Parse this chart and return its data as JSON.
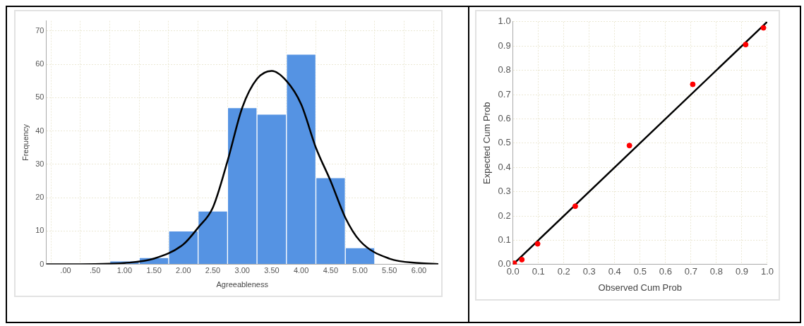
{
  "chart_data": [
    {
      "type": "histogram",
      "xlabel": "Agreeableness",
      "ylabel": "Frequency",
      "bins": [
        0.75,
        1.25,
        1.75,
        2.25,
        2.75,
        3.25,
        3.75,
        4.25,
        4.75,
        5.25
      ],
      "values": [
        1,
        2,
        10,
        16,
        47,
        45,
        63,
        26,
        5
      ],
      "color": "#5593e3",
      "series": [
        {
          "type": "line",
          "color": "#000000",
          "marker": "none",
          "x": [
            -0.33,
            0.0,
            0.5,
            1.0,
            1.5,
            2.0,
            2.25,
            2.5,
            2.75,
            3.0,
            3.25,
            3.5,
            3.75,
            4.0,
            4.25,
            4.5,
            4.75,
            5.0,
            5.5,
            6.0,
            6.33
          ],
          "values": [
            0,
            0,
            0.1,
            0.4,
            1.7,
            6,
            11,
            17,
            31,
            47,
            55.6,
            58,
            55,
            48,
            35,
            25,
            14,
            7,
            1.7,
            0.4,
            0.1
          ]
        }
      ],
      "xlim": [
        -0.33,
        6.33
      ],
      "xticks": [
        {
          "value": 0,
          "label": ".00"
        },
        {
          "value": 0.5,
          "label": ".50"
        },
        {
          "value": 1,
          "label": "1.00"
        },
        {
          "value": 1.5,
          "label": "1.50"
        },
        {
          "value": 2,
          "label": "2.00"
        },
        {
          "value": 2.5,
          "label": "2.50"
        },
        {
          "value": 3,
          "label": "3.00"
        },
        {
          "value": 3.5,
          "label": "3.50"
        },
        {
          "value": 4,
          "label": "4.00"
        },
        {
          "value": 4.5,
          "label": "4.50"
        },
        {
          "value": 5,
          "label": "5.00"
        },
        {
          "value": 5.5,
          "label": "5.50"
        },
        {
          "value": 6,
          "label": "6.00"
        }
      ],
      "ylim": [
        0,
        73
      ],
      "yticks": [
        0,
        10,
        20,
        30,
        40,
        50,
        60,
        70
      ],
      "grid": true
    },
    {
      "type": "scatter",
      "xlabel": "Observed Cum Prob",
      "ylabel": "Expected Cum Prob",
      "marker": "circle",
      "series": [
        {
          "color": "#ff0000",
          "x": [
            0.005,
            0.035,
            0.097,
            0.245,
            0.458,
            0.707,
            0.915,
            0.985
          ],
          "values": [
            0.005,
            0.02,
            0.085,
            0.24,
            0.49,
            0.742,
            0.906,
            0.975
          ]
        },
        {
          "type": "line",
          "color": "#000000",
          "marker": "none",
          "x": [
            0,
            1
          ],
          "values": [
            0,
            1
          ]
        }
      ],
      "xlim": [
        0,
        1
      ],
      "xticks": [
        {
          "value": 0,
          "label": "0.0"
        },
        0.1,
        0.2,
        0.3,
        0.4,
        0.5,
        0.6,
        0.7,
        0.8,
        0.9,
        {
          "value": 1,
          "label": "1.0"
        }
      ],
      "ylim": [
        0,
        1
      ],
      "yticks": [
        {
          "value": 0,
          "label": "0.0"
        },
        0.1,
        0.2,
        0.3,
        0.4,
        0.5,
        0.6,
        0.7,
        0.8,
        0.9,
        {
          "value": 1,
          "label": "1.0"
        }
      ],
      "grid": true
    }
  ]
}
